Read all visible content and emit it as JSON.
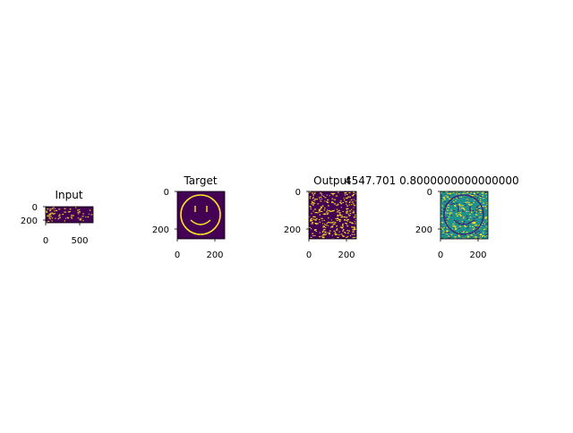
{
  "figure": {
    "panels": [
      {
        "title": "Input",
        "xticks": [
          "0",
          "500"
        ],
        "yticks": [
          "0",
          "200"
        ]
      },
      {
        "title": "Target",
        "xticks": [
          "0",
          "200"
        ],
        "yticks": [
          "0",
          "200"
        ]
      },
      {
        "title": "Output",
        "xticks": [
          "0",
          "200"
        ],
        "yticks": [
          "0",
          "200"
        ]
      },
      {
        "title": "4547.701 0.8000000000000000",
        "xticks": [
          "0",
          "200"
        ],
        "yticks": [
          "0",
          "200"
        ]
      }
    ]
  },
  "chart_data": [
    {
      "type": "heatmap",
      "title": "Input",
      "xlim": [
        0,
        700
      ],
      "ylim": [
        240,
        0
      ],
      "xticks": [
        0,
        500
      ],
      "yticks": [
        0,
        200
      ],
      "colormap": "viridis",
      "content": "sparse random noise, denser at left"
    },
    {
      "type": "heatmap",
      "title": "Target",
      "xlim": [
        0,
        256
      ],
      "ylim": [
        256,
        0
      ],
      "xticks": [
        0,
        200
      ],
      "yticks": [
        0,
        200
      ],
      "colormap": "viridis",
      "content": "smiley face outline"
    },
    {
      "type": "heatmap",
      "title": "Output",
      "xlim": [
        0,
        256
      ],
      "ylim": [
        256,
        0
      ],
      "xticks": [
        0,
        200
      ],
      "yticks": [
        0,
        200
      ],
      "colormap": "viridis",
      "content": "random noise"
    },
    {
      "type": "heatmap",
      "title": "4547.701 0.8000000000000000",
      "xlim": [
        0,
        256
      ],
      "ylim": [
        256,
        0
      ],
      "xticks": [
        0,
        200
      ],
      "yticks": [
        0,
        200
      ],
      "colormap": "viridis",
      "content": "difference map with smiley outline"
    }
  ]
}
